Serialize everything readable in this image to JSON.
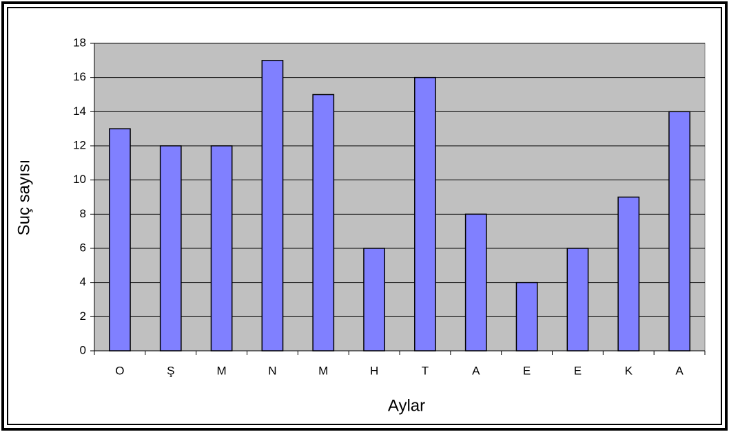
{
  "chart_data": {
    "type": "bar",
    "x_label": "Aylar",
    "y_label": "Suç sayısı",
    "categories": [
      "O",
      "Ş",
      "M",
      "N",
      "M",
      "H",
      "T",
      "A",
      "E",
      "E",
      "K",
      "A"
    ],
    "values": [
      13,
      12,
      12,
      17,
      15,
      6,
      16,
      8,
      4,
      6,
      9,
      14
    ],
    "color": "#8080ff",
    "ylim": [
      0,
      18
    ],
    "yticks": [
      0,
      2,
      4,
      6,
      8,
      10,
      12,
      14,
      16,
      18
    ],
    "grid": true
  }
}
